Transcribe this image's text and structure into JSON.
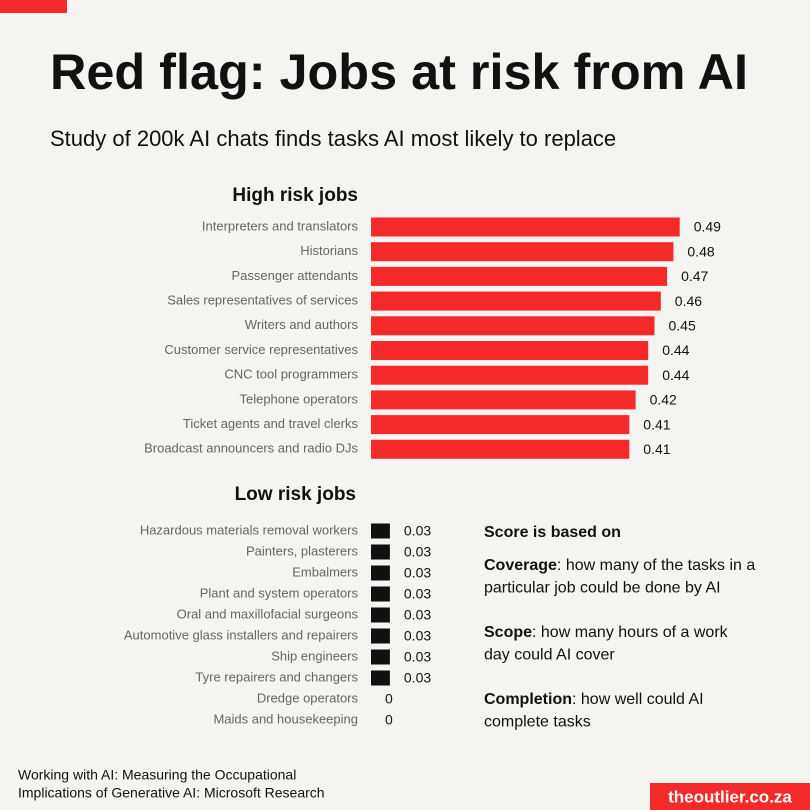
{
  "title": "Red flag: Jobs at risk from AI",
  "subtitle": "Study of 200k AI chats finds tasks AI most likely to replace",
  "chart_data": [
    {
      "type": "bar",
      "title": "High risk jobs",
      "categories": [
        "Interpreters and translators",
        "Historians",
        "Passenger attendants",
        "Sales representatives of services",
        "Writers and authors",
        "Customer service representatives",
        "CNC tool programmers",
        "Telephone operators",
        "Ticket agents and travel clerks",
        "Broadcast announcers and radio DJs"
      ],
      "values": [
        0.49,
        0.48,
        0.47,
        0.46,
        0.45,
        0.44,
        0.44,
        0.42,
        0.41,
        0.41
      ],
      "color": "#f42a2a"
    },
    {
      "type": "bar",
      "title": "Low risk jobs",
      "categories": [
        "Hazardous materials removal workers",
        "Painters, plasterers",
        "Embalmers",
        "Plant and system operators",
        "Oral and maxillofacial surgeons",
        "Automotive glass installers and repairers",
        "Ship engineers",
        "Tyre repairers and changers",
        "Dredge operators",
        "Maids and housekeeping"
      ],
      "values": [
        0.03,
        0.03,
        0.03,
        0.03,
        0.03,
        0.03,
        0.03,
        0.03,
        0,
        0
      ],
      "color": "#111111"
    }
  ],
  "notes": {
    "heading": "Score is based on",
    "items": [
      {
        "term": "Coverage",
        "lines": [
          ": how many of the tasks in a",
          "particular job could be done by AI"
        ]
      },
      {
        "term": "Scope",
        "lines": [
          ": how many hours of a work",
          "day could AI cover"
        ]
      },
      {
        "term": "Completion",
        "lines": [
          ": how well could AI",
          "complete tasks"
        ]
      }
    ]
  },
  "source": [
    "Working with AI: Measuring the Occupational",
    "Implications of Generative AI: Microsoft Research"
  ],
  "brand": "theoutlier.co.za"
}
